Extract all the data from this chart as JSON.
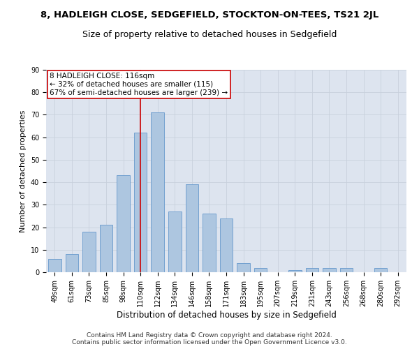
{
  "title": "8, HADLEIGH CLOSE, SEDGEFIELD, STOCKTON-ON-TEES, TS21 2JL",
  "subtitle": "Size of property relative to detached houses in Sedgefield",
  "xlabel": "Distribution of detached houses by size in Sedgefield",
  "ylabel": "Number of detached properties",
  "categories": [
    "49sqm",
    "61sqm",
    "73sqm",
    "85sqm",
    "98sqm",
    "110sqm",
    "122sqm",
    "134sqm",
    "146sqm",
    "158sqm",
    "171sqm",
    "183sqm",
    "195sqm",
    "207sqm",
    "219sqm",
    "231sqm",
    "243sqm",
    "256sqm",
    "268sqm",
    "280sqm",
    "292sqm"
  ],
  "values": [
    6,
    8,
    18,
    21,
    43,
    62,
    71,
    27,
    39,
    26,
    24,
    4,
    2,
    0,
    1,
    2,
    2,
    2,
    0,
    2,
    0
  ],
  "bar_color": "#adc6e0",
  "bar_edge_color": "#6699cc",
  "bar_width": 0.75,
  "vline_x_index": 5,
  "vline_color": "#cc0000",
  "annotation_line1": "8 HADLEIGH CLOSE: 116sqm",
  "annotation_line2": "← 32% of detached houses are smaller (115)",
  "annotation_line3": "67% of semi-detached houses are larger (239) →",
  "annotation_box_color": "#ffffff",
  "annotation_box_edge": "#cc0000",
  "ylim": [
    0,
    90
  ],
  "yticks": [
    0,
    10,
    20,
    30,
    40,
    50,
    60,
    70,
    80,
    90
  ],
  "grid_color": "#c8d0dc",
  "bg_color": "#dde4ef",
  "fig_bg_color": "#ffffff",
  "footer": "Contains HM Land Registry data © Crown copyright and database right 2024.\nContains public sector information licensed under the Open Government Licence v3.0.",
  "title_fontsize": 9.5,
  "subtitle_fontsize": 9,
  "xlabel_fontsize": 8.5,
  "ylabel_fontsize": 8,
  "tick_fontsize": 7,
  "annotation_fontsize": 7.5,
  "footer_fontsize": 6.5
}
